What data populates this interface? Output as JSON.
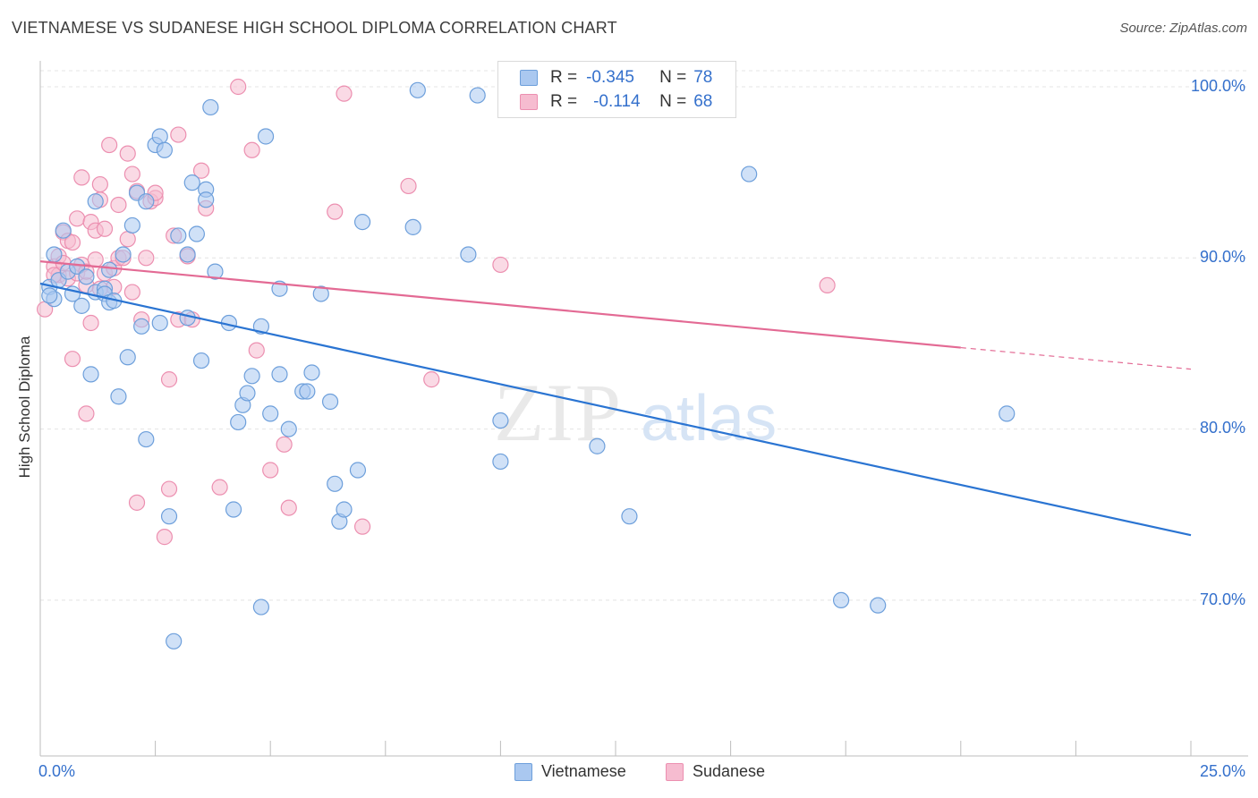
{
  "title": "VIETNAMESE VS SUDANESE HIGH SCHOOL DIPLOMA CORRELATION CHART",
  "source": "Source: ZipAtlas.com",
  "watermark": {
    "zip": "ZIP",
    "atlas": "atlas"
  },
  "legend_top": {
    "rows": [
      {
        "r_label": "R =",
        "r_value": "-0.345",
        "n_label": "N =",
        "n_value": "78"
      },
      {
        "r_label": "R =",
        "r_value": "-0.114",
        "n_label": "N =",
        "n_value": "68"
      }
    ]
  },
  "x_axis": {
    "min_label": "0.0%",
    "max_label": "25.0%"
  },
  "y_axis": {
    "label": "High School Diploma",
    "tick_labels": [
      "100.0%",
      "90.0%",
      "80.0%",
      "70.0%"
    ]
  },
  "colors": {
    "blue_fill": "#aac8f0",
    "blue_stroke": "#6d9fdb",
    "blue_line": "#2a74d2",
    "pink_fill": "#f6bcd0",
    "pink_stroke": "#ec8fb0",
    "pink_line": "#e36a94",
    "grid": "#e4e4e4"
  },
  "chart_data": {
    "type": "scatter",
    "xlabel": "",
    "ylabel": "High School Diploma",
    "xlim": [
      0,
      25
    ],
    "ylim": [
      61,
      101.5
    ],
    "y_ticks": [
      100,
      90,
      80,
      70
    ],
    "grid": true,
    "legend_placement": "top-center",
    "series": [
      {
        "name": "Vietnamese",
        "color": "#6d9fdb",
        "trend": {
          "x": [
            0,
            25
          ],
          "y": [
            88.5,
            73.8
          ],
          "dashed_from": null
        },
        "points": [
          [
            0.2,
            88.3
          ],
          [
            0.3,
            87.6
          ],
          [
            0.4,
            88.7
          ],
          [
            0.3,
            90.2
          ],
          [
            0.5,
            91.6
          ],
          [
            0.6,
            89.2
          ],
          [
            0.7,
            87.9
          ],
          [
            0.8,
            89.5
          ],
          [
            0.9,
            87.2
          ],
          [
            1.0,
            88.9
          ],
          [
            1.1,
            83.2
          ],
          [
            1.2,
            88.0
          ],
          [
            1.2,
            93.3
          ],
          [
            1.4,
            88.2
          ],
          [
            1.4,
            87.9
          ],
          [
            1.5,
            87.4
          ],
          [
            1.5,
            89.3
          ],
          [
            1.6,
            87.5
          ],
          [
            1.7,
            81.9
          ],
          [
            1.8,
            90.2
          ],
          [
            1.9,
            84.2
          ],
          [
            2.0,
            91.9
          ],
          [
            2.1,
            93.8
          ],
          [
            2.2,
            86.0
          ],
          [
            2.3,
            93.3
          ],
          [
            2.3,
            79.4
          ],
          [
            2.5,
            96.6
          ],
          [
            2.6,
            97.1
          ],
          [
            2.6,
            86.2
          ],
          [
            2.7,
            96.3
          ],
          [
            2.8,
            74.9
          ],
          [
            2.9,
            67.6
          ],
          [
            3.0,
            91.3
          ],
          [
            3.2,
            90.2
          ],
          [
            3.2,
            86.5
          ],
          [
            3.3,
            94.4
          ],
          [
            3.4,
            91.4
          ],
          [
            3.5,
            84.0
          ],
          [
            3.6,
            94.0
          ],
          [
            3.6,
            93.4
          ],
          [
            3.7,
            98.8
          ],
          [
            3.8,
            89.2
          ],
          [
            4.1,
            86.2
          ],
          [
            4.2,
            75.3
          ],
          [
            4.3,
            80.4
          ],
          [
            4.4,
            81.4
          ],
          [
            4.5,
            82.1
          ],
          [
            4.6,
            83.1
          ],
          [
            4.8,
            69.6
          ],
          [
            4.8,
            86.0
          ],
          [
            4.9,
            97.1
          ],
          [
            5.0,
            80.9
          ],
          [
            5.2,
            83.2
          ],
          [
            5.2,
            88.2
          ],
          [
            5.4,
            80.0
          ],
          [
            5.7,
            82.2
          ],
          [
            5.8,
            82.2
          ],
          [
            5.9,
            83.3
          ],
          [
            6.1,
            87.9
          ],
          [
            6.3,
            81.6
          ],
          [
            6.4,
            76.8
          ],
          [
            6.5,
            74.6
          ],
          [
            6.6,
            75.3
          ],
          [
            6.9,
            77.6
          ],
          [
            7.0,
            92.1
          ],
          [
            8.1,
            91.8
          ],
          [
            8.2,
            99.8
          ],
          [
            9.3,
            90.2
          ],
          [
            9.5,
            99.5
          ],
          [
            10.0,
            78.1
          ],
          [
            10.0,
            80.5
          ],
          [
            12.1,
            79.0
          ],
          [
            12.8,
            74.9
          ],
          [
            15.4,
            94.9
          ],
          [
            21.0,
            80.9
          ],
          [
            17.4,
            70.0
          ],
          [
            18.2,
            69.7
          ],
          [
            0.2,
            87.8
          ]
        ]
      },
      {
        "name": "Sudanese",
        "color": "#ec8fb0",
        "trend": {
          "x": [
            0,
            25
          ],
          "y": [
            89.8,
            83.5
          ],
          "dashed_from": 20
        },
        "points": [
          [
            0.1,
            87.0
          ],
          [
            0.3,
            89.5
          ],
          [
            0.4,
            90.1
          ],
          [
            0.4,
            89.0
          ],
          [
            0.5,
            91.5
          ],
          [
            0.6,
            91.0
          ],
          [
            0.6,
            88.8
          ],
          [
            0.7,
            84.1
          ],
          [
            0.7,
            90.9
          ],
          [
            0.8,
            92.3
          ],
          [
            0.9,
            89.6
          ],
          [
            0.9,
            94.7
          ],
          [
            1.0,
            88.4
          ],
          [
            1.0,
            80.9
          ],
          [
            1.1,
            92.1
          ],
          [
            1.1,
            86.2
          ],
          [
            1.2,
            89.9
          ],
          [
            1.2,
            91.6
          ],
          [
            1.3,
            94.3
          ],
          [
            1.3,
            93.4
          ],
          [
            1.4,
            89.1
          ],
          [
            1.4,
            91.7
          ],
          [
            1.5,
            96.6
          ],
          [
            1.6,
            89.4
          ],
          [
            1.6,
            88.3
          ],
          [
            1.7,
            90.0
          ],
          [
            1.7,
            93.1
          ],
          [
            1.8,
            90.0
          ],
          [
            1.9,
            96.1
          ],
          [
            1.9,
            91.1
          ],
          [
            2.0,
            94.9
          ],
          [
            2.1,
            93.9
          ],
          [
            2.1,
            75.7
          ],
          [
            2.2,
            86.4
          ],
          [
            2.3,
            90.0
          ],
          [
            2.4,
            93.3
          ],
          [
            2.5,
            93.5
          ],
          [
            2.5,
            93.8
          ],
          [
            2.7,
            73.7
          ],
          [
            2.8,
            82.9
          ],
          [
            2.8,
            76.5
          ],
          [
            2.9,
            91.3
          ],
          [
            3.0,
            86.4
          ],
          [
            3.0,
            97.2
          ],
          [
            3.2,
            90.1
          ],
          [
            3.3,
            86.4
          ],
          [
            3.5,
            95.1
          ],
          [
            3.6,
            92.9
          ],
          [
            3.9,
            76.6
          ],
          [
            4.3,
            100.0
          ],
          [
            4.6,
            96.3
          ],
          [
            4.7,
            84.6
          ],
          [
            5.0,
            77.6
          ],
          [
            5.3,
            79.1
          ],
          [
            5.4,
            75.4
          ],
          [
            6.4,
            92.7
          ],
          [
            6.6,
            99.6
          ],
          [
            7.0,
            74.3
          ],
          [
            8.0,
            94.2
          ],
          [
            8.5,
            82.9
          ],
          [
            10.0,
            89.6
          ],
          [
            17.1,
            88.4
          ],
          [
            0.3,
            89.0
          ],
          [
            0.5,
            89.7
          ],
          [
            0.8,
            89.1
          ],
          [
            1.0,
            89.2
          ],
          [
            1.3,
            88.2
          ],
          [
            2.0,
            88.0
          ]
        ]
      }
    ]
  },
  "bottom_legend": [
    {
      "name": "Vietnamese"
    },
    {
      "name": "Sudanese"
    }
  ]
}
